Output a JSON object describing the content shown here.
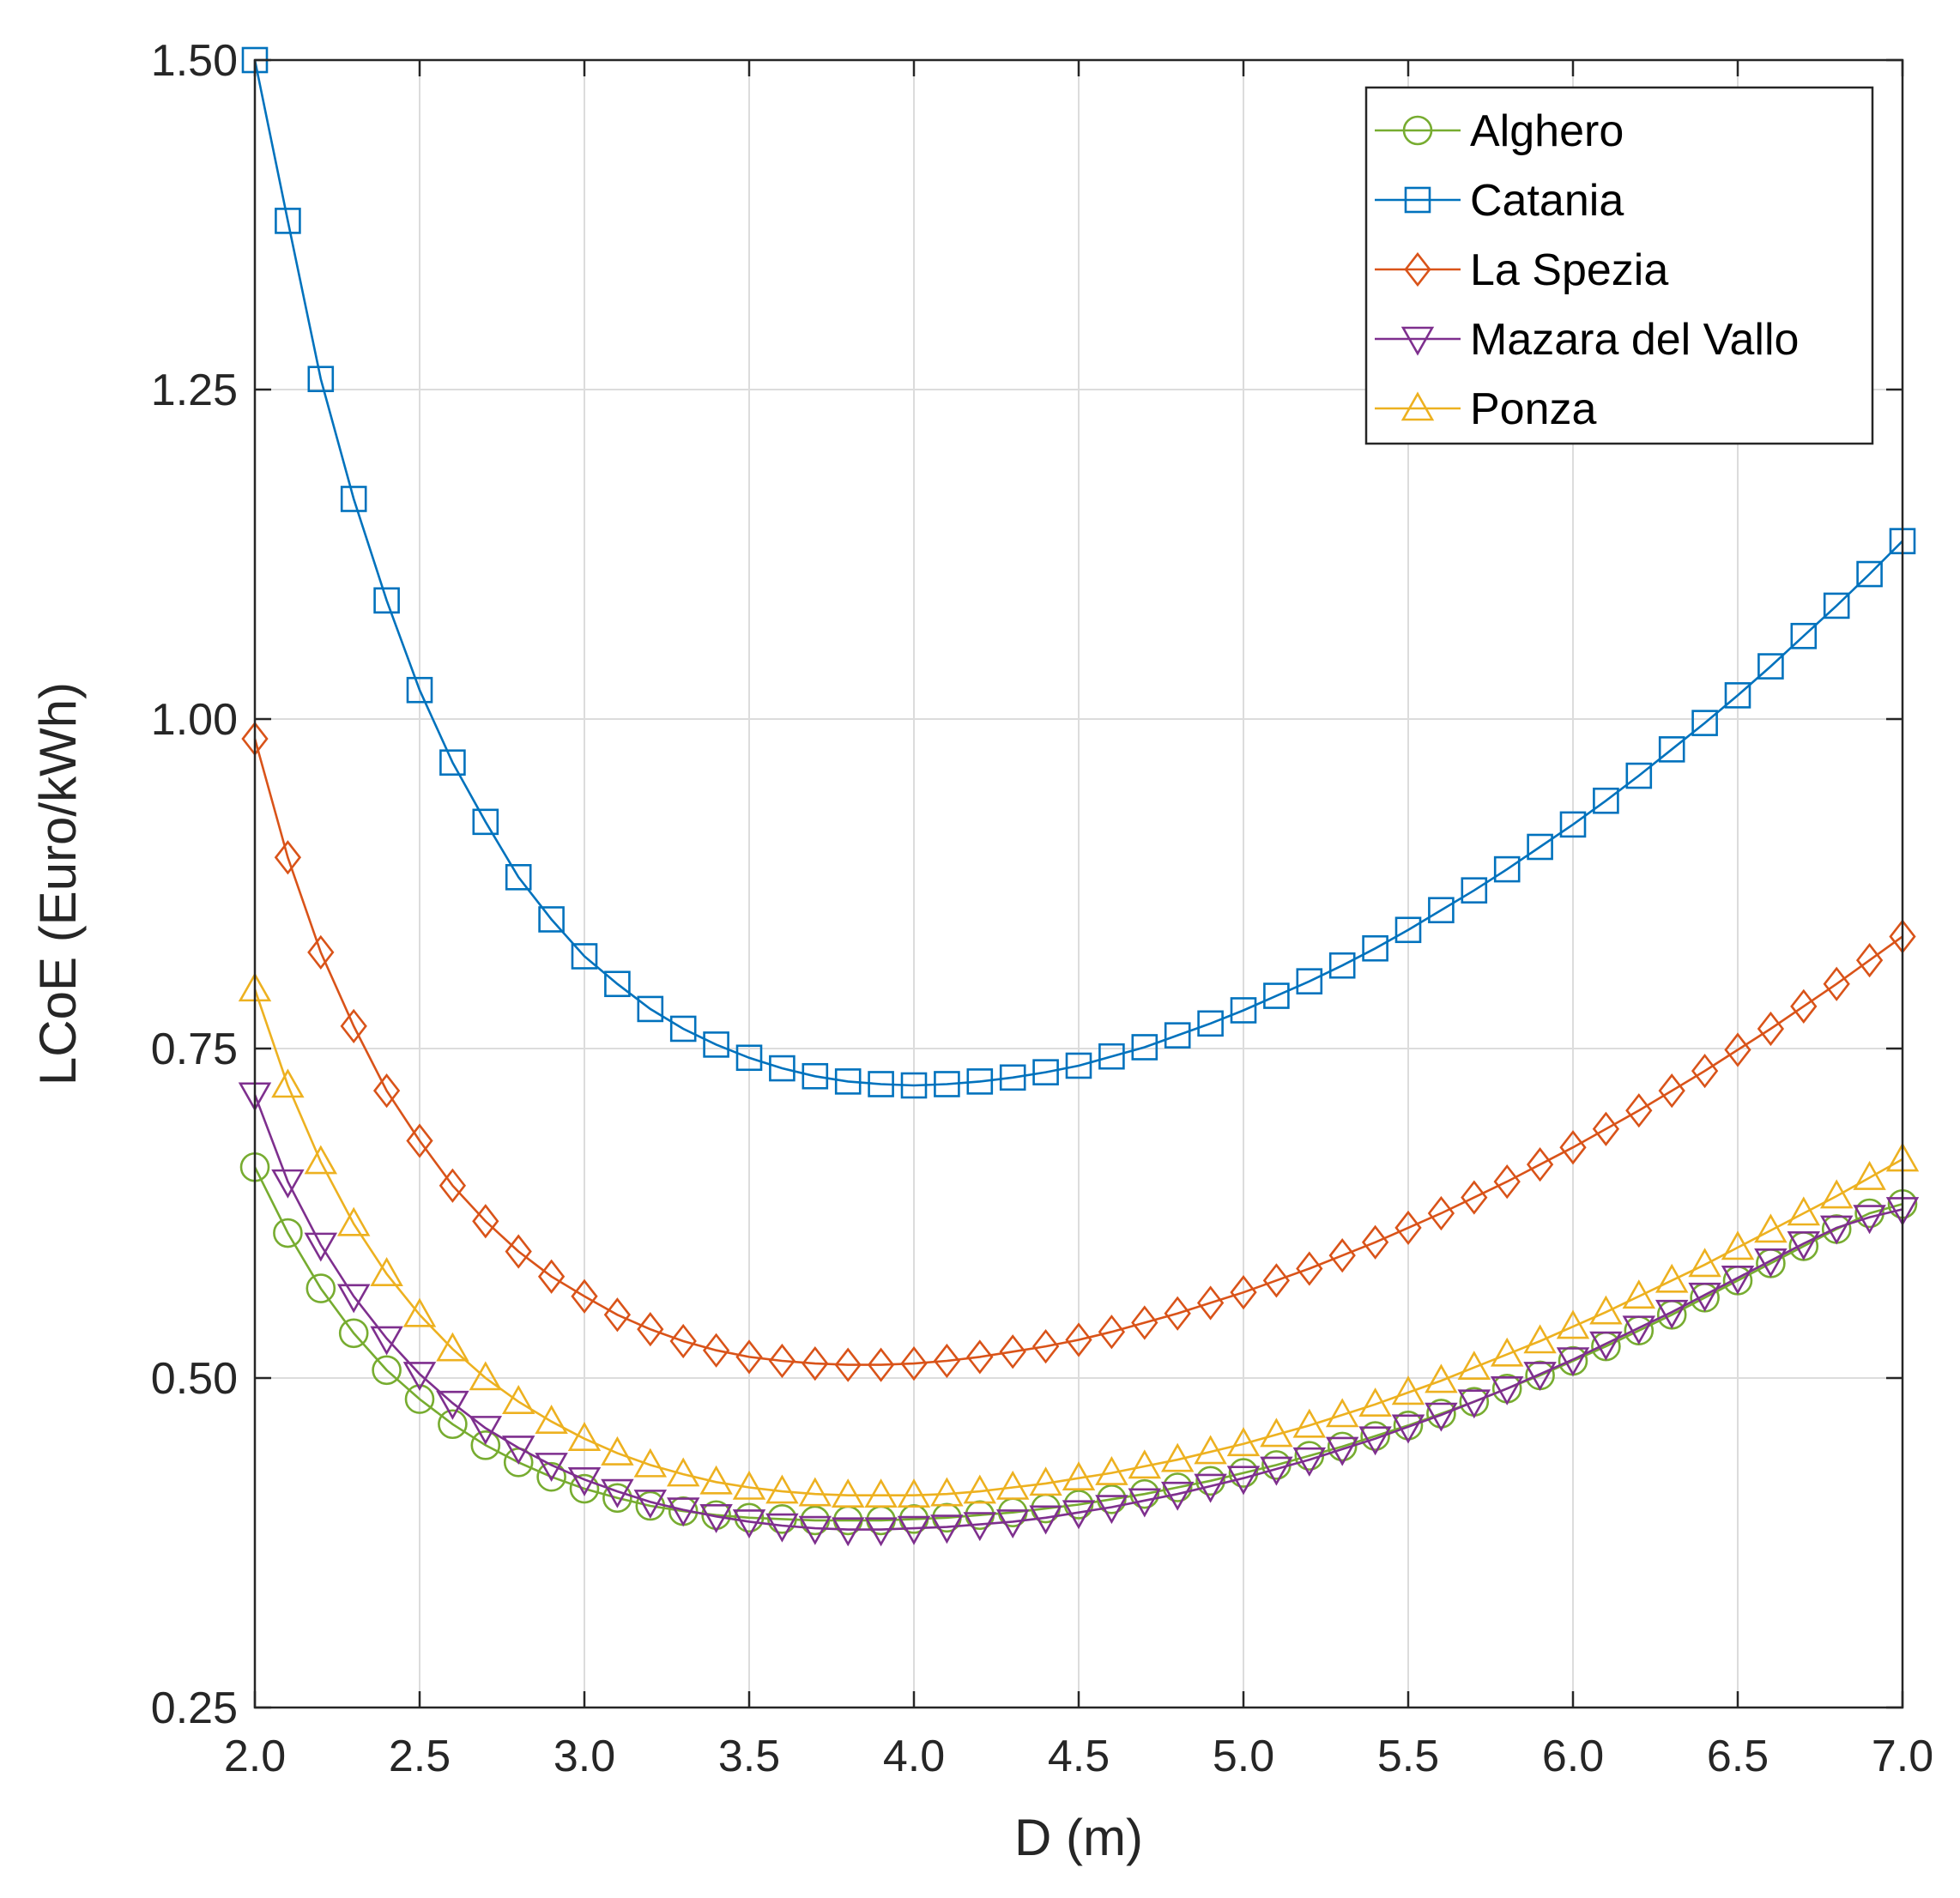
{
  "chart_data": {
    "type": "line",
    "title": "",
    "xlabel": "D (m)",
    "ylabel": "LCoE (Euro/kWh)",
    "xlim": [
      2.0,
      7.0
    ],
    "ylim": [
      0.25,
      1.5
    ],
    "grid": true,
    "legend_position": "top-right",
    "xticks": [
      2.0,
      2.5,
      3.0,
      3.5,
      4.0,
      4.5,
      5.0,
      5.5,
      6.0,
      6.5,
      7.0
    ],
    "xtick_labels": [
      "2.0",
      "2.5",
      "3.0",
      "3.5",
      "4.0",
      "4.5",
      "5.0",
      "5.5",
      "6.0",
      "6.5",
      "7.0"
    ],
    "yticks": [
      0.25,
      0.5,
      0.75,
      1.0,
      1.25,
      1.5
    ],
    "ytick_labels": [
      "0.25",
      "0.50",
      "0.75",
      "1.00",
      "1.25",
      "1.50"
    ],
    "x": [
      2.0,
      2.1,
      2.2,
      2.3,
      2.4,
      2.5,
      2.6,
      2.7,
      2.8,
      2.9,
      3.0,
      3.1,
      3.2,
      3.3,
      3.4,
      3.5,
      3.6,
      3.7,
      3.8,
      3.9,
      4.0,
      4.1,
      4.2,
      4.3,
      4.4,
      4.5,
      4.6,
      4.7,
      4.8,
      4.9,
      5.0,
      5.1,
      5.2,
      5.3,
      5.4,
      5.5,
      5.6,
      5.7,
      5.8,
      5.9,
      6.0,
      6.1,
      6.2,
      6.3,
      6.4,
      6.5,
      6.6,
      6.7,
      6.8,
      6.9,
      7.0
    ],
    "series": [
      {
        "name": "Alghero",
        "color": "#77ac30",
        "marker": "circle",
        "values": [
          0.66,
          0.61,
          0.568,
          0.534,
          0.506,
          0.484,
          0.465,
          0.449,
          0.436,
          0.425,
          0.416,
          0.409,
          0.403,
          0.399,
          0.396,
          0.394,
          0.393,
          0.392,
          0.392,
          0.392,
          0.393,
          0.394,
          0.396,
          0.398,
          0.401,
          0.404,
          0.408,
          0.412,
          0.417,
          0.422,
          0.428,
          0.434,
          0.441,
          0.448,
          0.456,
          0.464,
          0.473,
          0.482,
          0.492,
          0.502,
          0.513,
          0.524,
          0.536,
          0.548,
          0.561,
          0.574,
          0.587,
          0.6,
          0.613,
          0.625,
          0.632
        ]
      },
      {
        "name": "Catania",
        "color": "#0072bd",
        "marker": "square",
        "values": [
          1.5,
          1.378,
          1.258,
          1.167,
          1.09,
          1.022,
          0.967,
          0.922,
          0.88,
          0.848,
          0.82,
          0.799,
          0.78,
          0.765,
          0.753,
          0.743,
          0.735,
          0.729,
          0.725,
          0.723,
          0.722,
          0.723,
          0.725,
          0.728,
          0.732,
          0.737,
          0.744,
          0.751,
          0.76,
          0.769,
          0.779,
          0.79,
          0.801,
          0.813,
          0.826,
          0.84,
          0.855,
          0.87,
          0.886,
          0.903,
          0.92,
          0.938,
          0.957,
          0.977,
          0.997,
          1.018,
          1.04,
          1.063,
          1.086,
          1.11,
          1.135
        ]
      },
      {
        "name": "La Spezia",
        "color": "#d95319",
        "marker": "diamond",
        "values": [
          0.985,
          0.895,
          0.823,
          0.767,
          0.718,
          0.68,
          0.646,
          0.619,
          0.596,
          0.577,
          0.562,
          0.548,
          0.537,
          0.528,
          0.521,
          0.516,
          0.513,
          0.511,
          0.51,
          0.51,
          0.511,
          0.513,
          0.516,
          0.52,
          0.524,
          0.529,
          0.535,
          0.542,
          0.549,
          0.557,
          0.565,
          0.574,
          0.583,
          0.593,
          0.603,
          0.614,
          0.625,
          0.637,
          0.649,
          0.662,
          0.675,
          0.689,
          0.703,
          0.718,
          0.733,
          0.749,
          0.765,
          0.782,
          0.799,
          0.817,
          0.835
        ]
      },
      {
        "name": "Mazara del Vallo",
        "color": "#7e2f8e",
        "marker": "triangle-down",
        "values": [
          0.715,
          0.649,
          0.601,
          0.562,
          0.53,
          0.503,
          0.481,
          0.462,
          0.447,
          0.434,
          0.423,
          0.414,
          0.406,
          0.4,
          0.395,
          0.391,
          0.388,
          0.386,
          0.385,
          0.385,
          0.386,
          0.387,
          0.389,
          0.391,
          0.394,
          0.398,
          0.402,
          0.407,
          0.412,
          0.418,
          0.424,
          0.431,
          0.438,
          0.446,
          0.454,
          0.463,
          0.472,
          0.482,
          0.492,
          0.503,
          0.514,
          0.526,
          0.538,
          0.55,
          0.563,
          0.576,
          0.589,
          0.602,
          0.614,
          0.622,
          0.628
        ]
      },
      {
        "name": "Ponza",
        "color": "#edb120",
        "marker": "triangle-up",
        "values": [
          0.795,
          0.722,
          0.664,
          0.617,
          0.579,
          0.548,
          0.522,
          0.5,
          0.482,
          0.467,
          0.454,
          0.443,
          0.434,
          0.427,
          0.421,
          0.417,
          0.414,
          0.412,
          0.411,
          0.411,
          0.411,
          0.412,
          0.414,
          0.417,
          0.42,
          0.424,
          0.428,
          0.433,
          0.438,
          0.444,
          0.45,
          0.457,
          0.464,
          0.472,
          0.48,
          0.489,
          0.498,
          0.508,
          0.518,
          0.528,
          0.539,
          0.55,
          0.562,
          0.574,
          0.586,
          0.599,
          0.612,
          0.625,
          0.638,
          0.652,
          0.666
        ]
      }
    ]
  }
}
